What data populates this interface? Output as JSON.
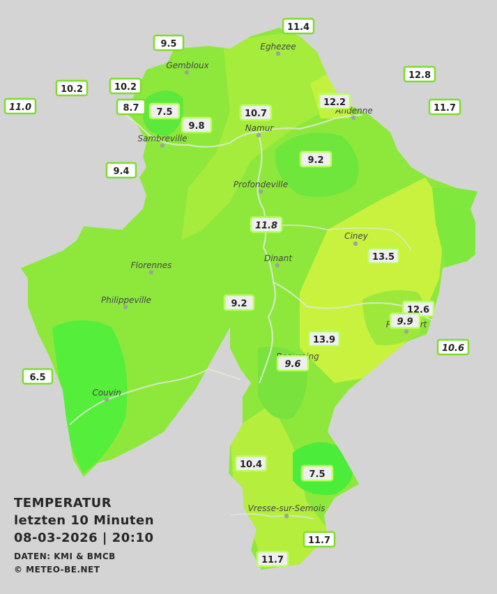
{
  "legend": {
    "title": "TEMPERATUR",
    "subtitle": "letzten 10 Minuten",
    "timestamp": "08-03-2026  |  20:10",
    "source": "DATEN: KMI & BMCB",
    "copyright": "© METEO-BE.NET"
  },
  "colors": {
    "background": "#d4d4d4",
    "province_base": "#8ee83c",
    "warm_zone": "#c8f23e",
    "cool_zone": "#5fe83e",
    "cold_zone": "#4cf03a",
    "label_border": "#7ddc2a",
    "river": "#dfe9d8"
  },
  "cities": [
    {
      "id": "eghezee",
      "name": "Eghezee"
    },
    {
      "id": "gembloux",
      "name": "Gembloux"
    },
    {
      "id": "andenne",
      "name": "Andenne"
    },
    {
      "id": "namur",
      "name": "Namur"
    },
    {
      "id": "sambreville",
      "name": "Sambreville"
    },
    {
      "id": "profondeville",
      "name": "Profondeville"
    },
    {
      "id": "ciney",
      "name": "Ciney"
    },
    {
      "id": "dinant",
      "name": "Dinant"
    },
    {
      "id": "florennes",
      "name": "Florennes"
    },
    {
      "id": "philippeville",
      "name": "Philippeville"
    },
    {
      "id": "rochefort",
      "name": "Rochefort"
    },
    {
      "id": "beauraing",
      "name": "Beauraing"
    },
    {
      "id": "couvin",
      "name": "Couvin"
    },
    {
      "id": "vresse",
      "name": "Vresse-sur-Semois"
    }
  ],
  "stations": [
    {
      "id": "s1",
      "value": "11.4",
      "italic": false
    },
    {
      "id": "s2",
      "value": "9.5",
      "italic": false
    },
    {
      "id": "s3",
      "value": "12.8",
      "italic": false
    },
    {
      "id": "s4",
      "value": "10.2",
      "italic": false
    },
    {
      "id": "s5",
      "value": "10.2",
      "italic": false
    },
    {
      "id": "s6",
      "value": "11.0",
      "italic": true
    },
    {
      "id": "s7",
      "value": "8.7",
      "italic": false
    },
    {
      "id": "s8",
      "value": "7.5",
      "italic": false
    },
    {
      "id": "s9",
      "value": "12.2",
      "italic": false
    },
    {
      "id": "s10",
      "value": "11.7",
      "italic": false
    },
    {
      "id": "s11",
      "value": "10.7",
      "italic": false
    },
    {
      "id": "s12",
      "value": "9.8",
      "italic": false
    },
    {
      "id": "s13",
      "value": "9.2",
      "italic": false
    },
    {
      "id": "s14",
      "value": "9.4",
      "italic": false
    },
    {
      "id": "s15",
      "value": "11.8",
      "italic": true
    },
    {
      "id": "s16",
      "value": "13.5",
      "italic": false
    },
    {
      "id": "s17",
      "value": "9.2",
      "italic": false
    },
    {
      "id": "s18",
      "value": "12.6",
      "italic": false
    },
    {
      "id": "s19",
      "value": "9.9",
      "italic": true
    },
    {
      "id": "s20",
      "value": "13.9",
      "italic": false
    },
    {
      "id": "s21",
      "value": "10.6",
      "italic": true
    },
    {
      "id": "s22",
      "value": "9.6",
      "italic": true
    },
    {
      "id": "s23",
      "value": "6.5",
      "italic": false
    },
    {
      "id": "s24",
      "value": "10.4",
      "italic": false
    },
    {
      "id": "s25",
      "value": "7.5",
      "italic": false
    },
    {
      "id": "s26",
      "value": "11.7",
      "italic": false
    },
    {
      "id": "s27",
      "value": "11.7",
      "italic": false
    }
  ]
}
